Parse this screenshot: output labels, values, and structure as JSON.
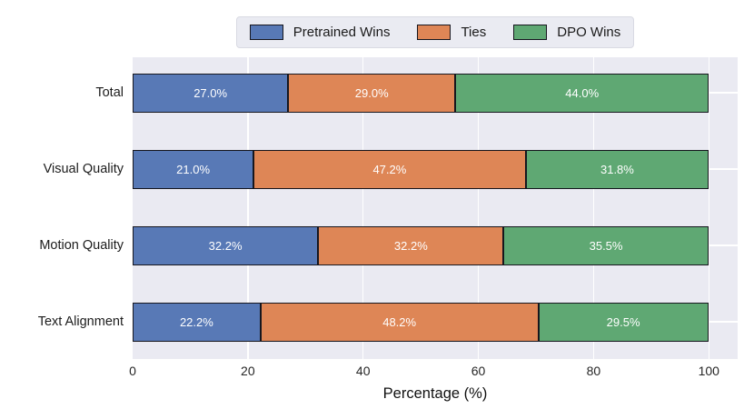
{
  "chart_data": {
    "type": "bar",
    "orientation": "horizontal_stacked",
    "categories": [
      "Total",
      "Visual Quality",
      "Motion Quality",
      "Text Alignment"
    ],
    "series": [
      {
        "name": "Pretrained Wins",
        "color": "#5879b6",
        "values": [
          27.0,
          21.0,
          32.2,
          22.2
        ]
      },
      {
        "name": "Ties",
        "color": "#de8656",
        "values": [
          29.0,
          47.2,
          32.2,
          48.2
        ]
      },
      {
        "name": "DPO Wins",
        "color": "#5fa873",
        "values": [
          44.0,
          31.8,
          35.5,
          29.5
        ]
      }
    ],
    "value_labels": [
      [
        "27.0%",
        "29.0%",
        "44.0%"
      ],
      [
        "21.0%",
        "47.2%",
        "31.8%"
      ],
      [
        "32.2%",
        "32.2%",
        "35.5%"
      ],
      [
        "22.2%",
        "48.2%",
        "29.5%"
      ]
    ],
    "title": "",
    "xlabel": "Percentage (%)",
    "ylabel": "",
    "x_ticks": [
      0,
      20,
      40,
      60,
      80,
      100
    ],
    "xlim": [
      0,
      105
    ],
    "grid": true,
    "legend_position": "top",
    "plot_background": "#eaeaf2",
    "grid_color": "#ffffff",
    "bar_edge_color": "#16161e",
    "bar_label_color": "#ffffff"
  }
}
